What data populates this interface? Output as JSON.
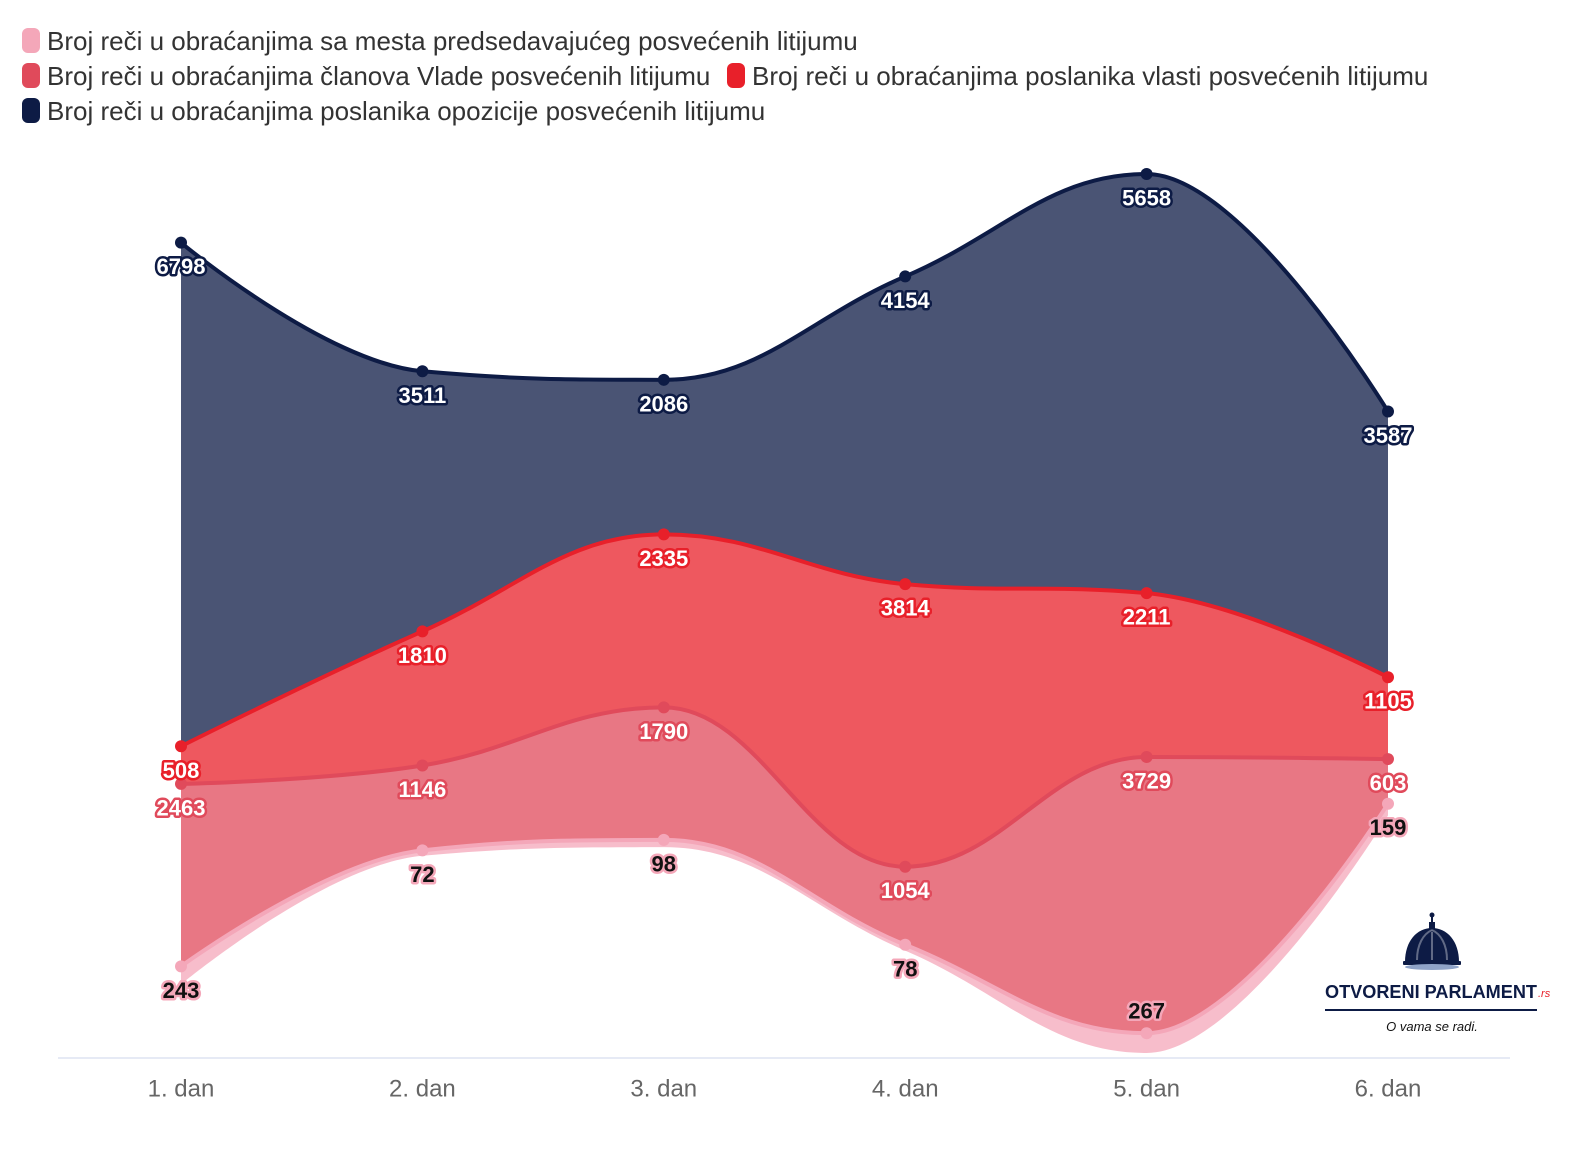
{
  "chart_data": {
    "type": "area",
    "stacking": "streamgraph",
    "categories": [
      "1. dan",
      "2. dan",
      "3. dan",
      "4. dan",
      "5. dan",
      "6. dan"
    ],
    "series": [
      {
        "name": "Broj reči u obraćanjima sa mesta predsedavajućeg posvećenih litijumu",
        "color": "#f4a7b9",
        "label_text_color": "#111111",
        "values": [
          243,
          72,
          98,
          78,
          267,
          159
        ]
      },
      {
        "name": "Broj reči u obraćanjima članova Vlade posvećenih litijumu",
        "color": "#e04a5b",
        "label_text_color": "#ffffff",
        "values": [
          2463,
          1146,
          1790,
          1054,
          3729,
          603
        ]
      },
      {
        "name": "Broj reči u obraćanjima poslanika vlasti posvećenih litijumu",
        "color": "#e8202a",
        "label_text_color": "#ffffff",
        "values": [
          508,
          1810,
          2335,
          3814,
          2211,
          1105
        ]
      },
      {
        "name": "Broj reči u obraćanjima poslanika opozicije posvećenih litijumu",
        "color": "#0d1b45",
        "label_text_color": "#ffffff",
        "values": [
          6798,
          3511,
          2086,
          4154,
          5658,
          3587
        ]
      }
    ],
    "data_labels": true,
    "legend_position": "top-left",
    "grid": false
  },
  "logo": {
    "name": "OTVORENI PARLAMENT",
    "tld": ".rs",
    "tagline": "O vama se radi."
  }
}
